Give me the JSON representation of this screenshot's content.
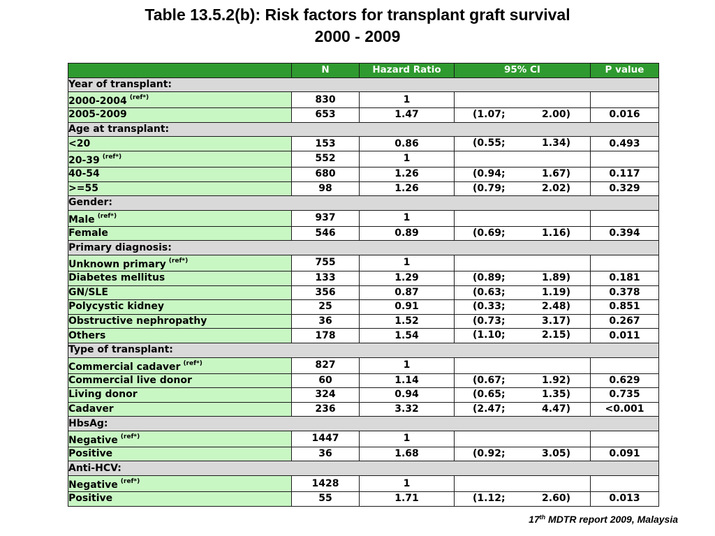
{
  "title": {
    "line1": "Table 13.5.2(b): Risk factors for transplant graft survival",
    "line2": "2000 - 2009"
  },
  "table": {
    "headers": [
      "",
      "N",
      "Hazard Ratio",
      "95% CI",
      "P value"
    ],
    "rows": [
      {
        "type": "section",
        "label": "Year of transplant:"
      },
      {
        "type": "data",
        "label": "2000-2004",
        "ref": "(ref*)",
        "n": "830",
        "hr": "1",
        "ci_lo": "",
        "ci_hi": "",
        "p": ""
      },
      {
        "type": "data",
        "label": "2005-2009",
        "ref": "",
        "n": "653",
        "hr": "1.47",
        "ci_lo": "(1.07;",
        "ci_hi": "2.00)",
        "p": "0.016"
      },
      {
        "type": "section",
        "label": "Age at transplant:"
      },
      {
        "type": "data",
        "label": "<20",
        "ref": "",
        "n": "153",
        "hr": "0.86",
        "ci_lo": "(0.55;",
        "ci_hi": "1.34)",
        "p": "0.493"
      },
      {
        "type": "data",
        "label": "20-39",
        "ref": "(ref*)",
        "n": "552",
        "hr": "1",
        "ci_lo": "",
        "ci_hi": "",
        "p": ""
      },
      {
        "type": "data",
        "label": "40-54",
        "ref": "",
        "n": "680",
        "hr": "1.26",
        "ci_lo": "(0.94;",
        "ci_hi": "1.67)",
        "p": "0.117"
      },
      {
        "type": "data",
        "label": ">=55",
        "ref": "",
        "n": "98",
        "hr": "1.26",
        "ci_lo": "(0.79;",
        "ci_hi": "2.02)",
        "p": "0.329"
      },
      {
        "type": "section",
        "label": "Gender:"
      },
      {
        "type": "data",
        "label": "Male",
        "ref": "(ref*)",
        "n": "937",
        "hr": "1",
        "ci_lo": "",
        "ci_hi": "",
        "p": ""
      },
      {
        "type": "data",
        "label": "Female",
        "ref": "",
        "n": "546",
        "hr": "0.89",
        "ci_lo": "(0.69;",
        "ci_hi": "1.16)",
        "p": "0.394"
      },
      {
        "type": "section",
        "label": "Primary diagnosis:"
      },
      {
        "type": "data",
        "label": "Unknown primary",
        "ref": "(ref*)",
        "n": "755",
        "hr": "1",
        "ci_lo": "",
        "ci_hi": "",
        "p": ""
      },
      {
        "type": "data",
        "label": "Diabetes mellitus",
        "ref": "",
        "n": "133",
        "hr": "1.29",
        "ci_lo": "(0.89;",
        "ci_hi": "1.89)",
        "p": "0.181"
      },
      {
        "type": "data",
        "label": "GN/SLE",
        "ref": "",
        "n": "356",
        "hr": "0.87",
        "ci_lo": "(0.63;",
        "ci_hi": "1.19)",
        "p": "0.378"
      },
      {
        "type": "data",
        "label": "Polycystic kidney",
        "ref": "",
        "n": "25",
        "hr": "0.91",
        "ci_lo": "(0.33;",
        "ci_hi": "2.48)",
        "p": "0.851"
      },
      {
        "type": "data",
        "label": "Obstructive nephropathy",
        "ref": "",
        "n": "36",
        "hr": "1.52",
        "ci_lo": "(0.73;",
        "ci_hi": "3.17)",
        "p": "0.267"
      },
      {
        "type": "data",
        "label": "Others",
        "ref": "",
        "n": "178",
        "hr": "1.54",
        "ci_lo": "(1.10;",
        "ci_hi": "2.15)",
        "p": "0.011"
      },
      {
        "type": "section",
        "label": "Type of transplant:"
      },
      {
        "type": "data",
        "label": "Commercial cadaver",
        "ref": "(ref*)",
        "n": "827",
        "hr": "1",
        "ci_lo": "",
        "ci_hi": "",
        "p": ""
      },
      {
        "type": "data",
        "label": "Commercial live donor",
        "ref": "",
        "n": "60",
        "hr": "1.14",
        "ci_lo": "(0.67;",
        "ci_hi": "1.92)",
        "p": "0.629"
      },
      {
        "type": "data",
        "label": "Living donor",
        "ref": "",
        "n": "324",
        "hr": "0.94",
        "ci_lo": "(0.65;",
        "ci_hi": "1.35)",
        "p": "0.735"
      },
      {
        "type": "data",
        "label": "Cadaver",
        "ref": "",
        "n": "236",
        "hr": "3.32",
        "ci_lo": "(2.47;",
        "ci_hi": "4.47)",
        "p": "<0.001"
      },
      {
        "type": "section",
        "label": "HbsAg:"
      },
      {
        "type": "data",
        "label": "Negative",
        "ref": "(ref*)",
        "n": "1447",
        "hr": "1",
        "ci_lo": "",
        "ci_hi": "",
        "p": ""
      },
      {
        "type": "data",
        "label": "Positive",
        "ref": "",
        "n": "36",
        "hr": "1.68",
        "ci_lo": "(0.92;",
        "ci_hi": "3.05)",
        "p": "0.091"
      },
      {
        "type": "section",
        "label": "Anti-HCV:"
      },
      {
        "type": "data",
        "label": "Negative",
        "ref": "(ref*)",
        "n": "1428",
        "hr": "1",
        "ci_lo": "",
        "ci_hi": "",
        "p": ""
      },
      {
        "type": "data",
        "label": "Positive",
        "ref": "",
        "n": "55",
        "hr": "1.71",
        "ci_lo": "(1.12;",
        "ci_hi": "2.60)",
        "p": "0.013"
      }
    ]
  },
  "footer": {
    "number": "17",
    "ordinal": "th",
    "text": " MDTR report 2009, Malaysia"
  },
  "colors": {
    "header_bg": "#2f9a2f",
    "label_bg": "#c9f7c4",
    "section_bg": "#d9d9d9"
  }
}
